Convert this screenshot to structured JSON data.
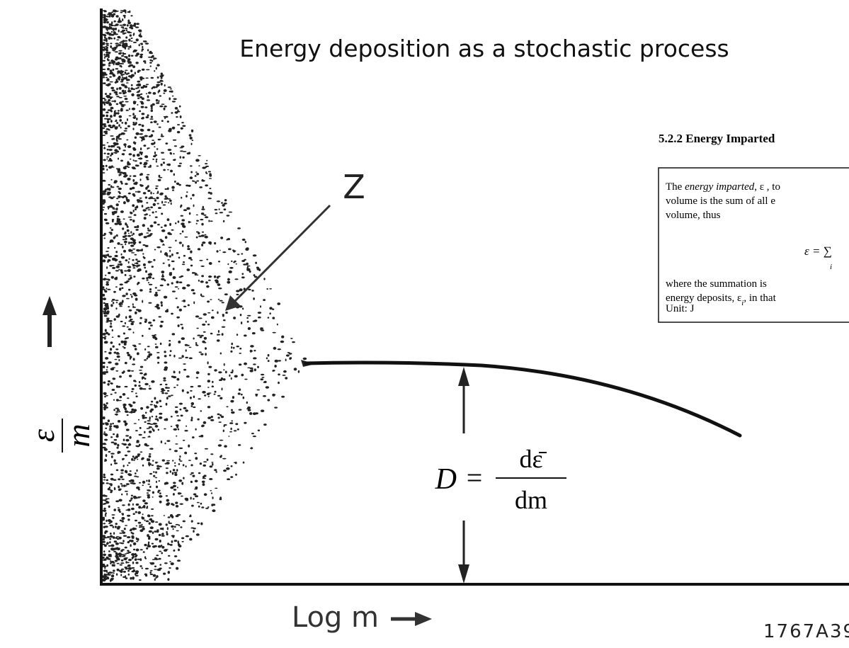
{
  "title": "Energy deposition as a stochastic process",
  "pointer_label": "Z",
  "y_axis_label": {
    "numerator": "ε",
    "denominator": "m"
  },
  "x_axis_label": "Log m",
  "formula": {
    "lhs": "D",
    "eq": "=",
    "numerator": "dε̄",
    "denominator": "dm"
  },
  "figure_id": "1767A39",
  "excerpt": {
    "heading": "5.2.2   Energy Imparted",
    "lines": [
      [
        "The ",
        "energy imparted",
        ", ε , to"
      ],
      [
        "volume is the sum of all e"
      ],
      [
        "volume, thus"
      ]
    ],
    "equation": {
      "lhs": "ε = ∑",
      "index": "i"
    },
    "lines_after": [
      [
        "where  the  summation  is"
      ],
      [
        "energy deposits, ε",
        "i",
        ", in that"
      ]
    ],
    "unit": "Unit: J"
  }
}
